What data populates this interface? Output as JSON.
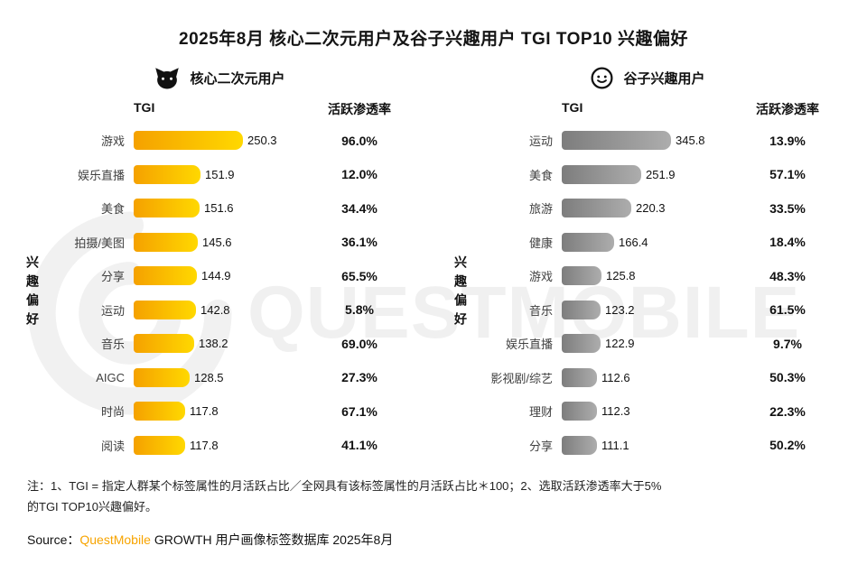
{
  "title": "2025年8月 核心二次元用户及谷子兴趣用户 TGI TOP10 兴趣偏好",
  "watermark_text": "QUESTMOBILE",
  "chart_data": [
    {
      "type": "bar",
      "orientation": "horizontal",
      "group_label": "核心二次元用户",
      "icon": "cat-icon",
      "tgi_header": "TGI",
      "penetration_header": "活跃渗透率",
      "axis_label": "兴趣偏好",
      "bar_colors": [
        "#F5A100",
        "#FFD800"
      ],
      "xlim": [
        0,
        260
      ],
      "legend_position": "top",
      "grid": false,
      "categories": [
        "游戏",
        "娱乐直播",
        "美食",
        "拍摄/美图",
        "分享",
        "运动",
        "音乐",
        "AIGC",
        "时尚",
        "阅读"
      ],
      "series": [
        {
          "name": "TGI",
          "values": [
            250.3,
            151.9,
            151.6,
            145.6,
            144.9,
            142.8,
            138.2,
            128.5,
            117.8,
            117.8
          ]
        },
        {
          "name": "活跃渗透率",
          "values": [
            "96.0%",
            "12.0%",
            "34.4%",
            "36.1%",
            "65.5%",
            "5.8%",
            "69.0%",
            "27.3%",
            "67.1%",
            "41.1%"
          ]
        }
      ]
    },
    {
      "type": "bar",
      "orientation": "horizontal",
      "group_label": "谷子兴趣用户",
      "icon": "badge-icon",
      "tgi_header": "TGI",
      "penetration_header": "活跃渗透率",
      "axis_label": "兴趣偏好",
      "bar_colors": [
        "#7D7D7D",
        "#ADADAD"
      ],
      "xlim": [
        0,
        360
      ],
      "legend_position": "top",
      "grid": false,
      "categories": [
        "运动",
        "美食",
        "旅游",
        "健康",
        "游戏",
        "音乐",
        "娱乐直播",
        "影视剧/综艺",
        "理财",
        "分享"
      ],
      "series": [
        {
          "name": "TGI",
          "values": [
            345.8,
            251.9,
            220.3,
            166.4,
            125.8,
            123.2,
            122.9,
            112.6,
            112.3,
            111.1
          ]
        },
        {
          "name": "活跃渗透率",
          "values": [
            "13.9%",
            "57.1%",
            "33.5%",
            "18.4%",
            "48.3%",
            "61.5%",
            "9.7%",
            "50.3%",
            "22.3%",
            "50.2%"
          ]
        }
      ]
    }
  ],
  "footnote": {
    "line1": "注：1、TGI = 指定人群某个标签属性的月活跃占比／全网具有该标签属性的月活跃占比＊100；2、选取活跃渗透率大于5%",
    "line2": "的TGI TOP10兴趣偏好。"
  },
  "source": {
    "prefix": "Source：",
    "brand": "QuestMobile",
    "suffix": " GROWTH 用户画像标签数据库 2025年8月"
  }
}
